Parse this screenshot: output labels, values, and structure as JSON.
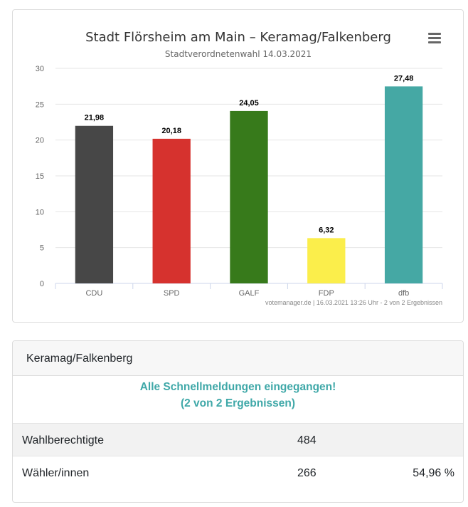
{
  "chart_data": {
    "type": "bar",
    "title": "Stadt Flörsheim am Main – Keramag/Falkenberg",
    "subtitle": "Stadtverordnetenwahl 14.03.2021",
    "categories": [
      "CDU",
      "SPD",
      "GALF",
      "FDP",
      "dfb"
    ],
    "values": [
      21.98,
      20.18,
      24.05,
      6.32,
      27.48
    ],
    "value_labels": [
      "21,98",
      "20,18",
      "24,05",
      "6,32",
      "27,48"
    ],
    "colors": [
      "#474747",
      "#d6322e",
      "#377a1b",
      "#fbee4b",
      "#45a8a4"
    ],
    "ylim": [
      0,
      30
    ],
    "yticks": [
      0,
      5,
      10,
      15,
      20,
      25,
      30
    ],
    "xlabel": "",
    "ylabel": "",
    "credits": "votemanager.de | 16.03.2021 13:26 Uhr - 2 von 2 Ergebnissen"
  },
  "menu_icon": "hamburger-menu-icon",
  "results": {
    "header": "Keramag/Falkenberg",
    "status_line1": "Alle Schnellmeldungen eingegangen!",
    "status_line2": "(2 von 2 Ergebnissen)",
    "rows": [
      {
        "label": "Wahlberechtigte",
        "value": "484",
        "percent": ""
      },
      {
        "label": "Wähler/innen",
        "value": "266",
        "percent": "54,96 %"
      }
    ]
  }
}
